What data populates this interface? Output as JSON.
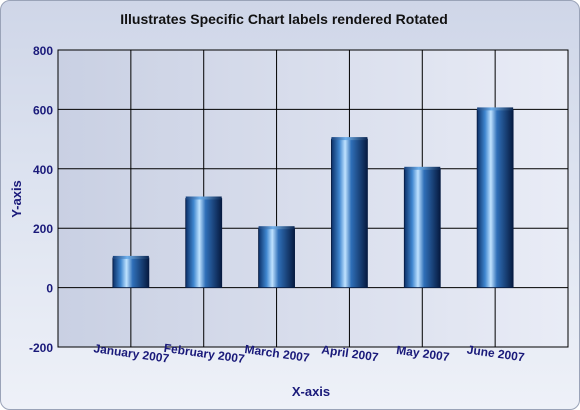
{
  "chart_data": {
    "type": "bar",
    "title": "Illustrates Specific Chart labels rendered Rotated",
    "xlabel": "X-axis",
    "ylabel": "Y-axis",
    "categories": [
      "January 2007",
      "February 2007",
      "March 2007",
      "April 2007",
      "May 2007",
      "June 2007"
    ],
    "values": [
      100,
      300,
      200,
      500,
      400,
      600
    ],
    "ylim": [
      -200,
      800
    ],
    "yticks": [
      "-200",
      "0",
      "200",
      "400",
      "600",
      "800"
    ],
    "grid": true,
    "legend": "none",
    "bar_color": "#1a5aa0"
  }
}
